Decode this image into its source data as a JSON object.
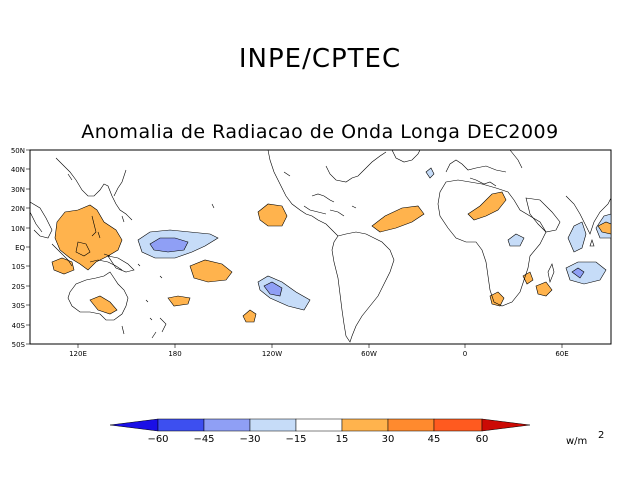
{
  "header": {
    "title": "INPE/CPTEC",
    "subtitle": "Anomalia de Radiacao de Onda Longa DEC2009"
  },
  "map": {
    "lat_labels": [
      "50N",
      "40N",
      "30N",
      "20N",
      "10N",
      "EQ",
      "10S",
      "20S",
      "30S",
      "40S",
      "50S"
    ],
    "lon_labels": [
      "120E",
      "180",
      "120W",
      "60W",
      "0",
      "60E"
    ],
    "regions": [
      {
        "name": "tropical-west-pacific",
        "sign": "positive",
        "level": "15 to 30"
      },
      {
        "name": "north-australia",
        "sign": "positive",
        "level": "15 to 30"
      },
      {
        "name": "central-pacific",
        "sign": "negative",
        "level": "-30 to -15"
      },
      {
        "name": "central-pacific-core",
        "sign": "negative",
        "level": "-45 to -30"
      },
      {
        "name": "south-pacific",
        "sign": "negative",
        "level": "-30 to -15"
      },
      {
        "name": "tropical-atlantic",
        "sign": "positive",
        "level": "15 to 30"
      },
      {
        "name": "africa-sahel",
        "sign": "positive",
        "level": "15 to 30"
      },
      {
        "name": "indian-ocean",
        "sign": "negative",
        "level": "-30 to -15"
      }
    ]
  },
  "colorbar": {
    "labels": [
      "−60",
      "−45",
      "−30",
      "−15",
      "15",
      "30",
      "45",
      "60"
    ],
    "colors": [
      "#1a0fe6",
      "#3d4ff0",
      "#8f9ff5",
      "#c6dcf8",
      "#ffffff",
      "#ffb34d",
      "#ff8a2e",
      "#ff5a1f",
      "#cc0a05"
    ],
    "unit": "w/m",
    "unit_exp": "2"
  }
}
